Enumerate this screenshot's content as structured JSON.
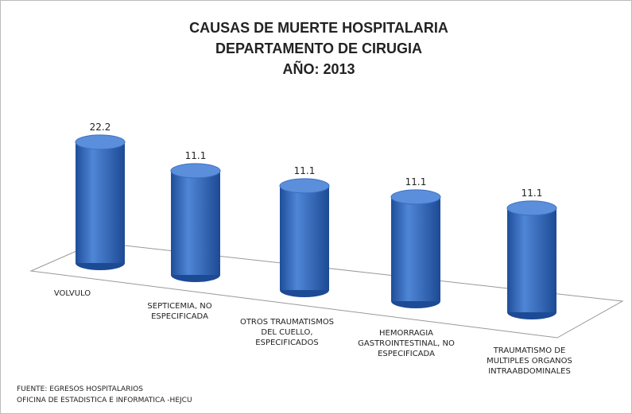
{
  "chart_data": {
    "type": "bar3d",
    "title": [
      "CAUSAS DE MUERTE HOSPITALARIA",
      "DEPARTAMENTO DE CIRUGIA",
      "AÑO: 2013"
    ],
    "categories": [
      "VOLVULO",
      "SEPTICEMIA, NO\nESPECIFICADA",
      "OTROS TRAUMATISMOS\nDEL CUELLO,\nESPECIFICADOS",
      "HEMORRAGIA\nGASTROINTESTINAL, NO\nESPECIFICADA",
      "TRAUMATISMO DE\nMULTIPLES ORGANOS\nINTRAABDOMINALES"
    ],
    "values": [
      22.2,
      11.1,
      11.1,
      11.1,
      11.1
    ],
    "color": "#3a6fc4",
    "source": [
      "FUENTE:  EGRESOS  HOSPITALARIOS",
      "OFICINA  DE ESTADISTICA  E INFORMATICA  -HEJCU"
    ]
  }
}
